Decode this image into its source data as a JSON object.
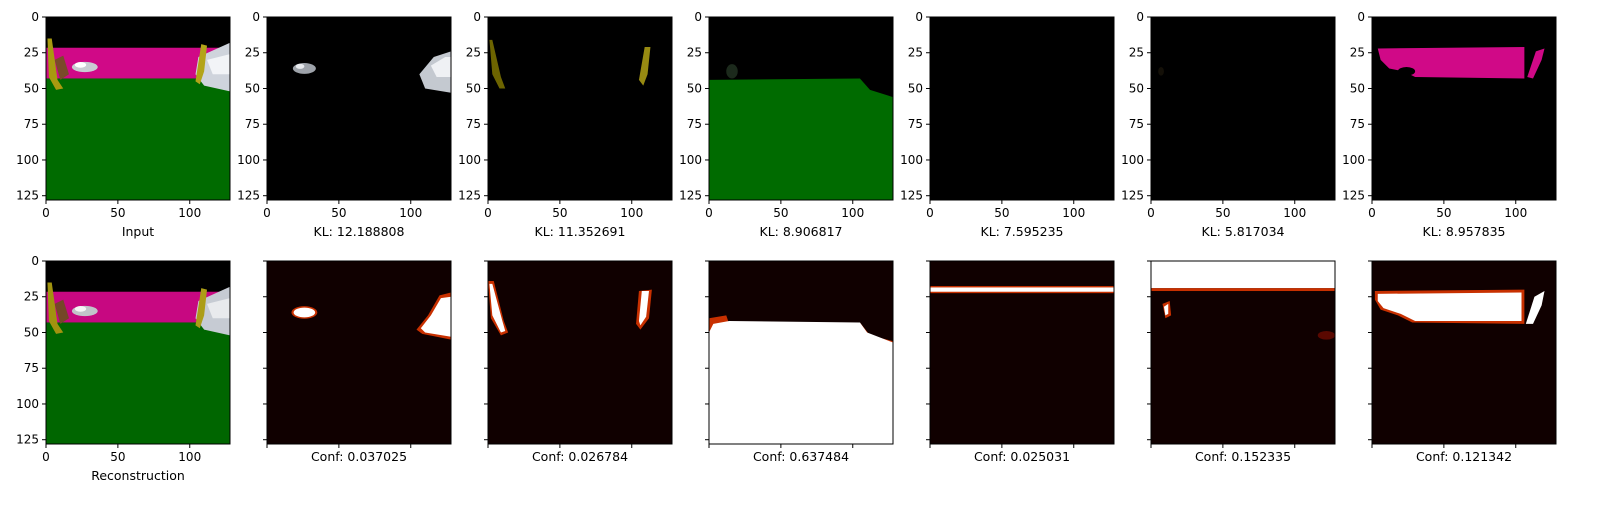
{
  "chart_data": {
    "type": "image_grid",
    "image_extent": [
      0,
      128
    ],
    "xticks": [
      0,
      50,
      100
    ],
    "yticks": [
      0,
      25,
      50,
      75,
      100,
      125
    ],
    "colors": {
      "road": "#d00987",
      "ground": "#006b00",
      "background": "#000000",
      "heat_low": "#100000",
      "heat_mid": "#c83000",
      "heat_high": "#ffffff"
    },
    "top_row": [
      {
        "caption": "Input",
        "content": "input-scene"
      },
      {
        "caption": "KL: 12.188808",
        "kl": 12.188808,
        "content": "slot-vehicles"
      },
      {
        "caption": "KL: 11.352691",
        "kl": 11.352691,
        "content": "slot-poles"
      },
      {
        "caption": "KL: 8.906817",
        "kl": 8.906817,
        "content": "slot-ground"
      },
      {
        "caption": "KL: 7.595235",
        "kl": 7.595235,
        "content": "slot-empty"
      },
      {
        "caption": "KL: 5.817034",
        "kl": 5.817034,
        "content": "slot-faint"
      },
      {
        "caption": "KL: 8.957835",
        "kl": 8.957835,
        "content": "slot-road"
      }
    ],
    "bottom_row": [
      {
        "caption": "Reconstruction",
        "content": "reconstruction"
      },
      {
        "caption": "Conf: 0.037025",
        "conf": 0.037025,
        "content": "mask-vehicles"
      },
      {
        "caption": "Conf: 0.026784",
        "conf": 0.026784,
        "content": "mask-poles"
      },
      {
        "caption": "Conf: 0.637484",
        "conf": 0.637484,
        "content": "mask-ground"
      },
      {
        "caption": "Conf: 0.025031",
        "conf": 0.025031,
        "content": "mask-horizon"
      },
      {
        "caption": "Conf: 0.152335",
        "conf": 0.152335,
        "content": "mask-sky"
      },
      {
        "caption": "Conf: 0.121342",
        "conf": 0.121342,
        "content": "mask-road"
      }
    ]
  }
}
